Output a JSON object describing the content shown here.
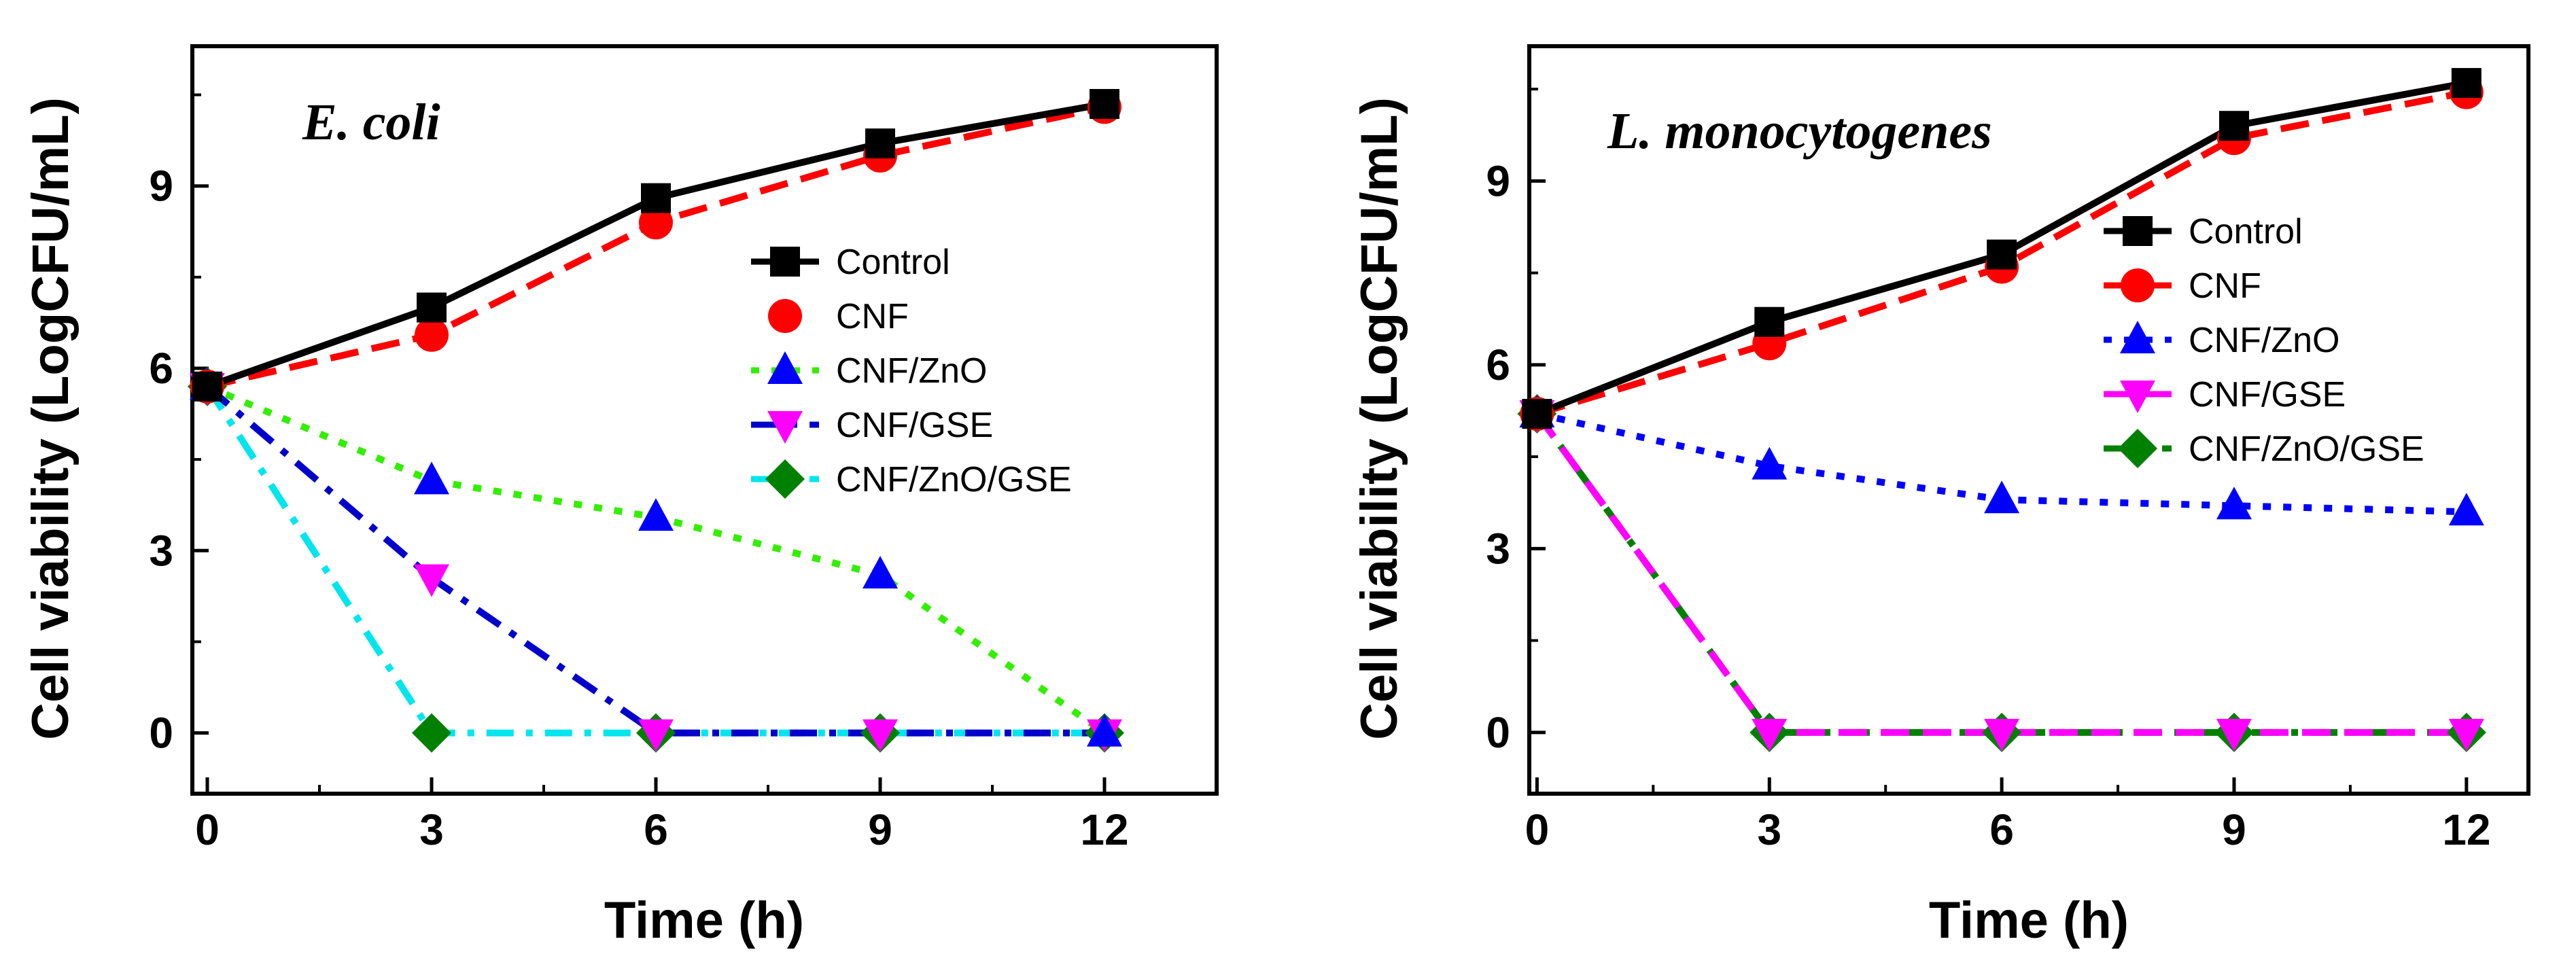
{
  "chart_data": [
    {
      "type": "line",
      "title": "E. coli",
      "xlabel": "Time (h)",
      "ylabel": "Cell viability (LogCFU/mL)",
      "x": [
        0,
        3,
        6,
        9,
        12
      ],
      "xticks": [
        "0",
        "3",
        "6",
        "9",
        "12"
      ],
      "yticks": [
        "0",
        "3",
        "6",
        "9"
      ],
      "xlim": [
        -0.2,
        13.5
      ],
      "ylim": [
        -1.0,
        11.3
      ],
      "series": [
        {
          "name": "Control",
          "values": [
            5.7,
            7.0,
            8.8,
            9.7,
            10.35
          ],
          "color": "#000000",
          "marker": "square",
          "dash": "none"
        },
        {
          "name": "CNF",
          "values": [
            5.7,
            6.55,
            8.4,
            9.5,
            10.3
          ],
          "color": "#ff0000",
          "marker": "circle",
          "dash": "long"
        },
        {
          "name": "CNF/ZnO",
          "values": [
            5.7,
            4.15,
            3.55,
            2.6,
            0
          ],
          "color": "#0000ff",
          "marker": "triangle-up",
          "dash": "none",
          "line_color": "#33ee00",
          "line_dash": "dot"
        },
        {
          "name": "CNF/GSE",
          "values": [
            5.7,
            2.55,
            0,
            0,
            0
          ],
          "color": "#ff00ff",
          "marker": "triangle-down",
          "dash": "none",
          "line_color": "#0000cc",
          "line_dash": "dashdot"
        },
        {
          "name": "CNF/ZnO/GSE",
          "values": [
            5.7,
            0,
            0,
            0,
            0
          ],
          "color": "#008000",
          "marker": "diamond",
          "dash": "none",
          "line_color": "#00e5ee",
          "line_dash": "dashdot"
        }
      ],
      "legend": {
        "position": "right",
        "entries": [
          "Control",
          "CNF",
          "CNF/ZnO",
          "CNF/GSE",
          "CNF/ZnO/GSE"
        ]
      }
    },
    {
      "type": "line",
      "title": "L. monocytogenes",
      "xlabel": "Time (h)",
      "ylabel": "Cell viability (LogCFU/mL)",
      "x": [
        0,
        3,
        6,
        9,
        12
      ],
      "xticks": [
        "0",
        "3",
        "6",
        "9",
        "12"
      ],
      "yticks": [
        "0",
        "3",
        "6",
        "9"
      ],
      "xlim": [
        -0.1,
        12.8
      ],
      "ylim": [
        -1.0,
        11.2
      ],
      "series": [
        {
          "name": "Control",
          "values": [
            5.2,
            6.7,
            7.8,
            9.9,
            10.6
          ],
          "color": "#000000",
          "marker": "square",
          "dash": "none"
        },
        {
          "name": "CNF",
          "values": [
            5.2,
            6.35,
            7.6,
            9.7,
            10.45
          ],
          "color": "#ff0000",
          "marker": "circle",
          "dash": "long"
        },
        {
          "name": "CNF/ZnO",
          "values": [
            5.2,
            4.35,
            3.8,
            3.7,
            3.6
          ],
          "color": "#0000ff",
          "marker": "triangle-up",
          "dash": "dot"
        },
        {
          "name": "CNF/GSE",
          "values": [
            5.2,
            0,
            0,
            0,
            0
          ],
          "color": "#ff00ff",
          "marker": "triangle-down",
          "dash": "long"
        },
        {
          "name": "CNF/ZnO/GSE",
          "values": [
            5.2,
            0,
            0,
            0,
            0
          ],
          "color": "#008000",
          "marker": "diamond",
          "dash": "dashdot"
        }
      ],
      "legend": {
        "position": "right",
        "entries": [
          "Control",
          "CNF",
          "CNF/ZnO",
          "CNF/GSE",
          "CNF/ZnO/GSE"
        ]
      }
    }
  ]
}
